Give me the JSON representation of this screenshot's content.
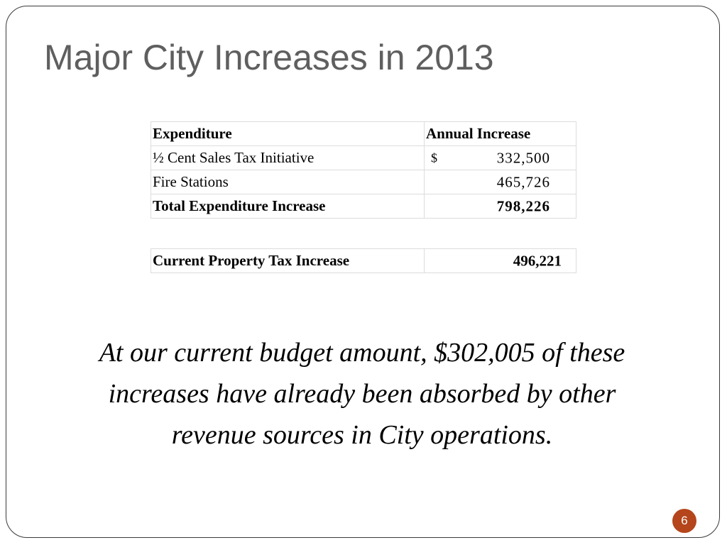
{
  "slide": {
    "title": "Major City Increases in 2013",
    "page_number": "6"
  },
  "expenditure_table": {
    "header": {
      "col1": "Expenditure",
      "col2": "Annual Increase"
    },
    "rows": [
      {
        "label": "½ Cent Sales Tax Initiative",
        "currency": "$",
        "amount": "332,500"
      },
      {
        "label": "Fire Stations",
        "amount": "465,726"
      }
    ],
    "total": {
      "label": "Total Expenditure Increase",
      "amount": "798,226"
    }
  },
  "property_table": {
    "label": "Current Property Tax Increase",
    "amount": "496,221"
  },
  "note": "At our current budget amount, $302,005 of these increases have already been absorbed by other revenue sources in City operations.",
  "colors": {
    "title": "#5f5f5f",
    "frame": "#3a3a3a",
    "badge": "#b5451b",
    "table_border": "#dcdcdc"
  }
}
